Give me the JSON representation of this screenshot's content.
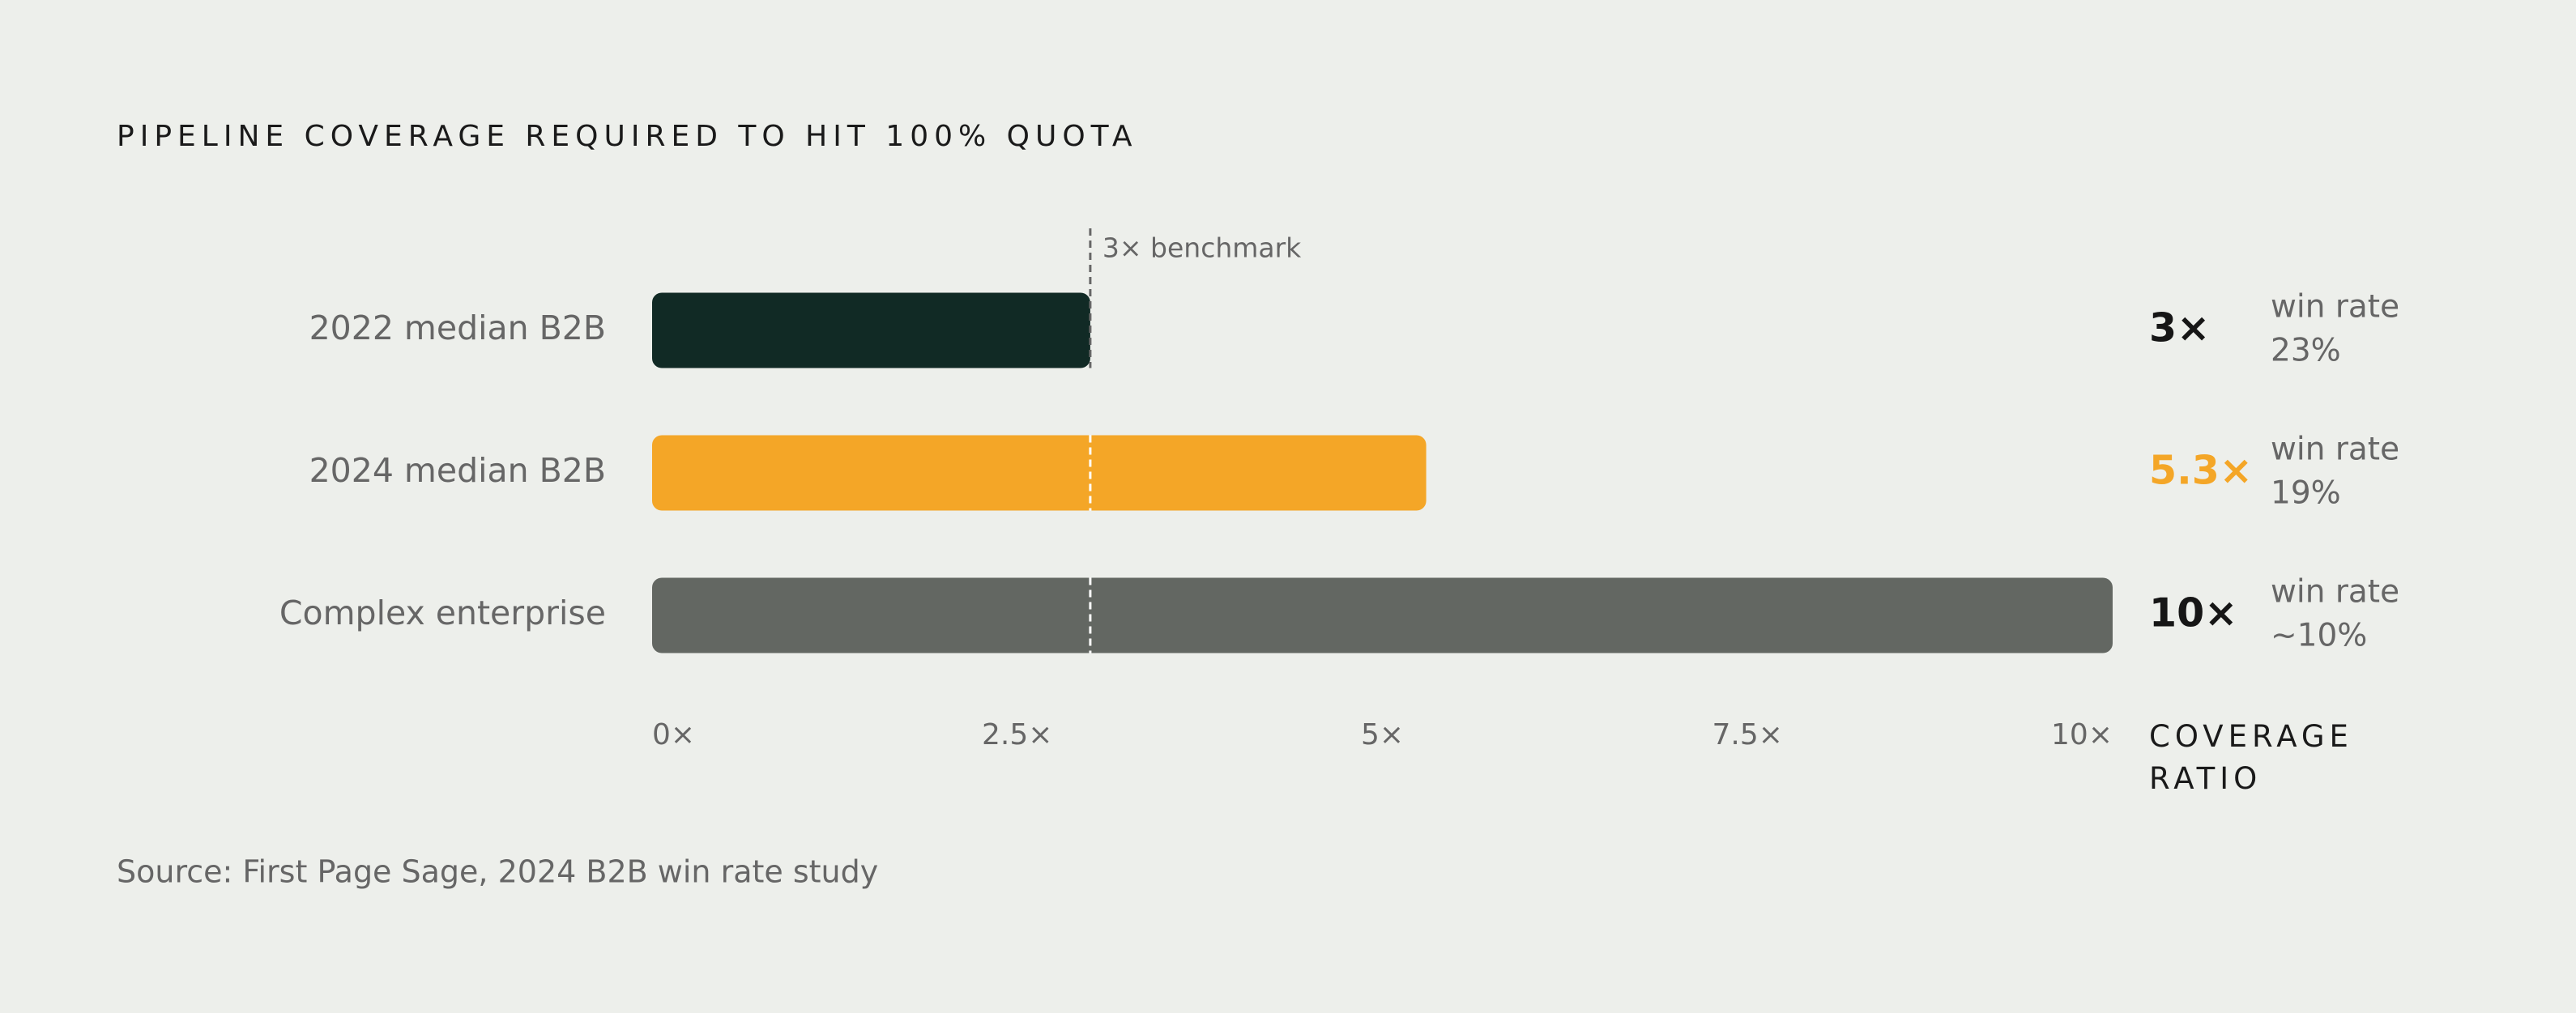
{
  "chart_data": {
    "type": "hbar",
    "title": "PIPELINE COVERAGE REQUIRED TO HIT 100% QUOTA",
    "categories": [
      "2022 median B2B",
      "2024 median B2B",
      "Complex enterprise"
    ],
    "values": [
      3,
      5.3,
      10
    ],
    "value_labels": [
      "3×",
      "5.3×",
      "10×"
    ],
    "colors": [
      "#112a25",
      "#f4a627",
      "#636762"
    ],
    "value_label_colors": [
      "#161616",
      "#f4a627",
      "#161616"
    ],
    "win_rate_label": "win rate",
    "win_rates": [
      "23%",
      "19%",
      "~10%"
    ],
    "benchmark": {
      "value": 3,
      "label": "3× benchmark"
    },
    "xlim": [
      0,
      10
    ],
    "xticks": [
      {
        "value": 0,
        "label": "0×"
      },
      {
        "value": 2.5,
        "label": "2.5×"
      },
      {
        "value": 5,
        "label": "5×"
      },
      {
        "value": 7.5,
        "label": "7.5×"
      },
      {
        "value": 10,
        "label": "10×"
      }
    ],
    "xlabel": "COVERAGE RATIO",
    "source": "Source: First Page Sage, 2024 B2B win rate study"
  }
}
